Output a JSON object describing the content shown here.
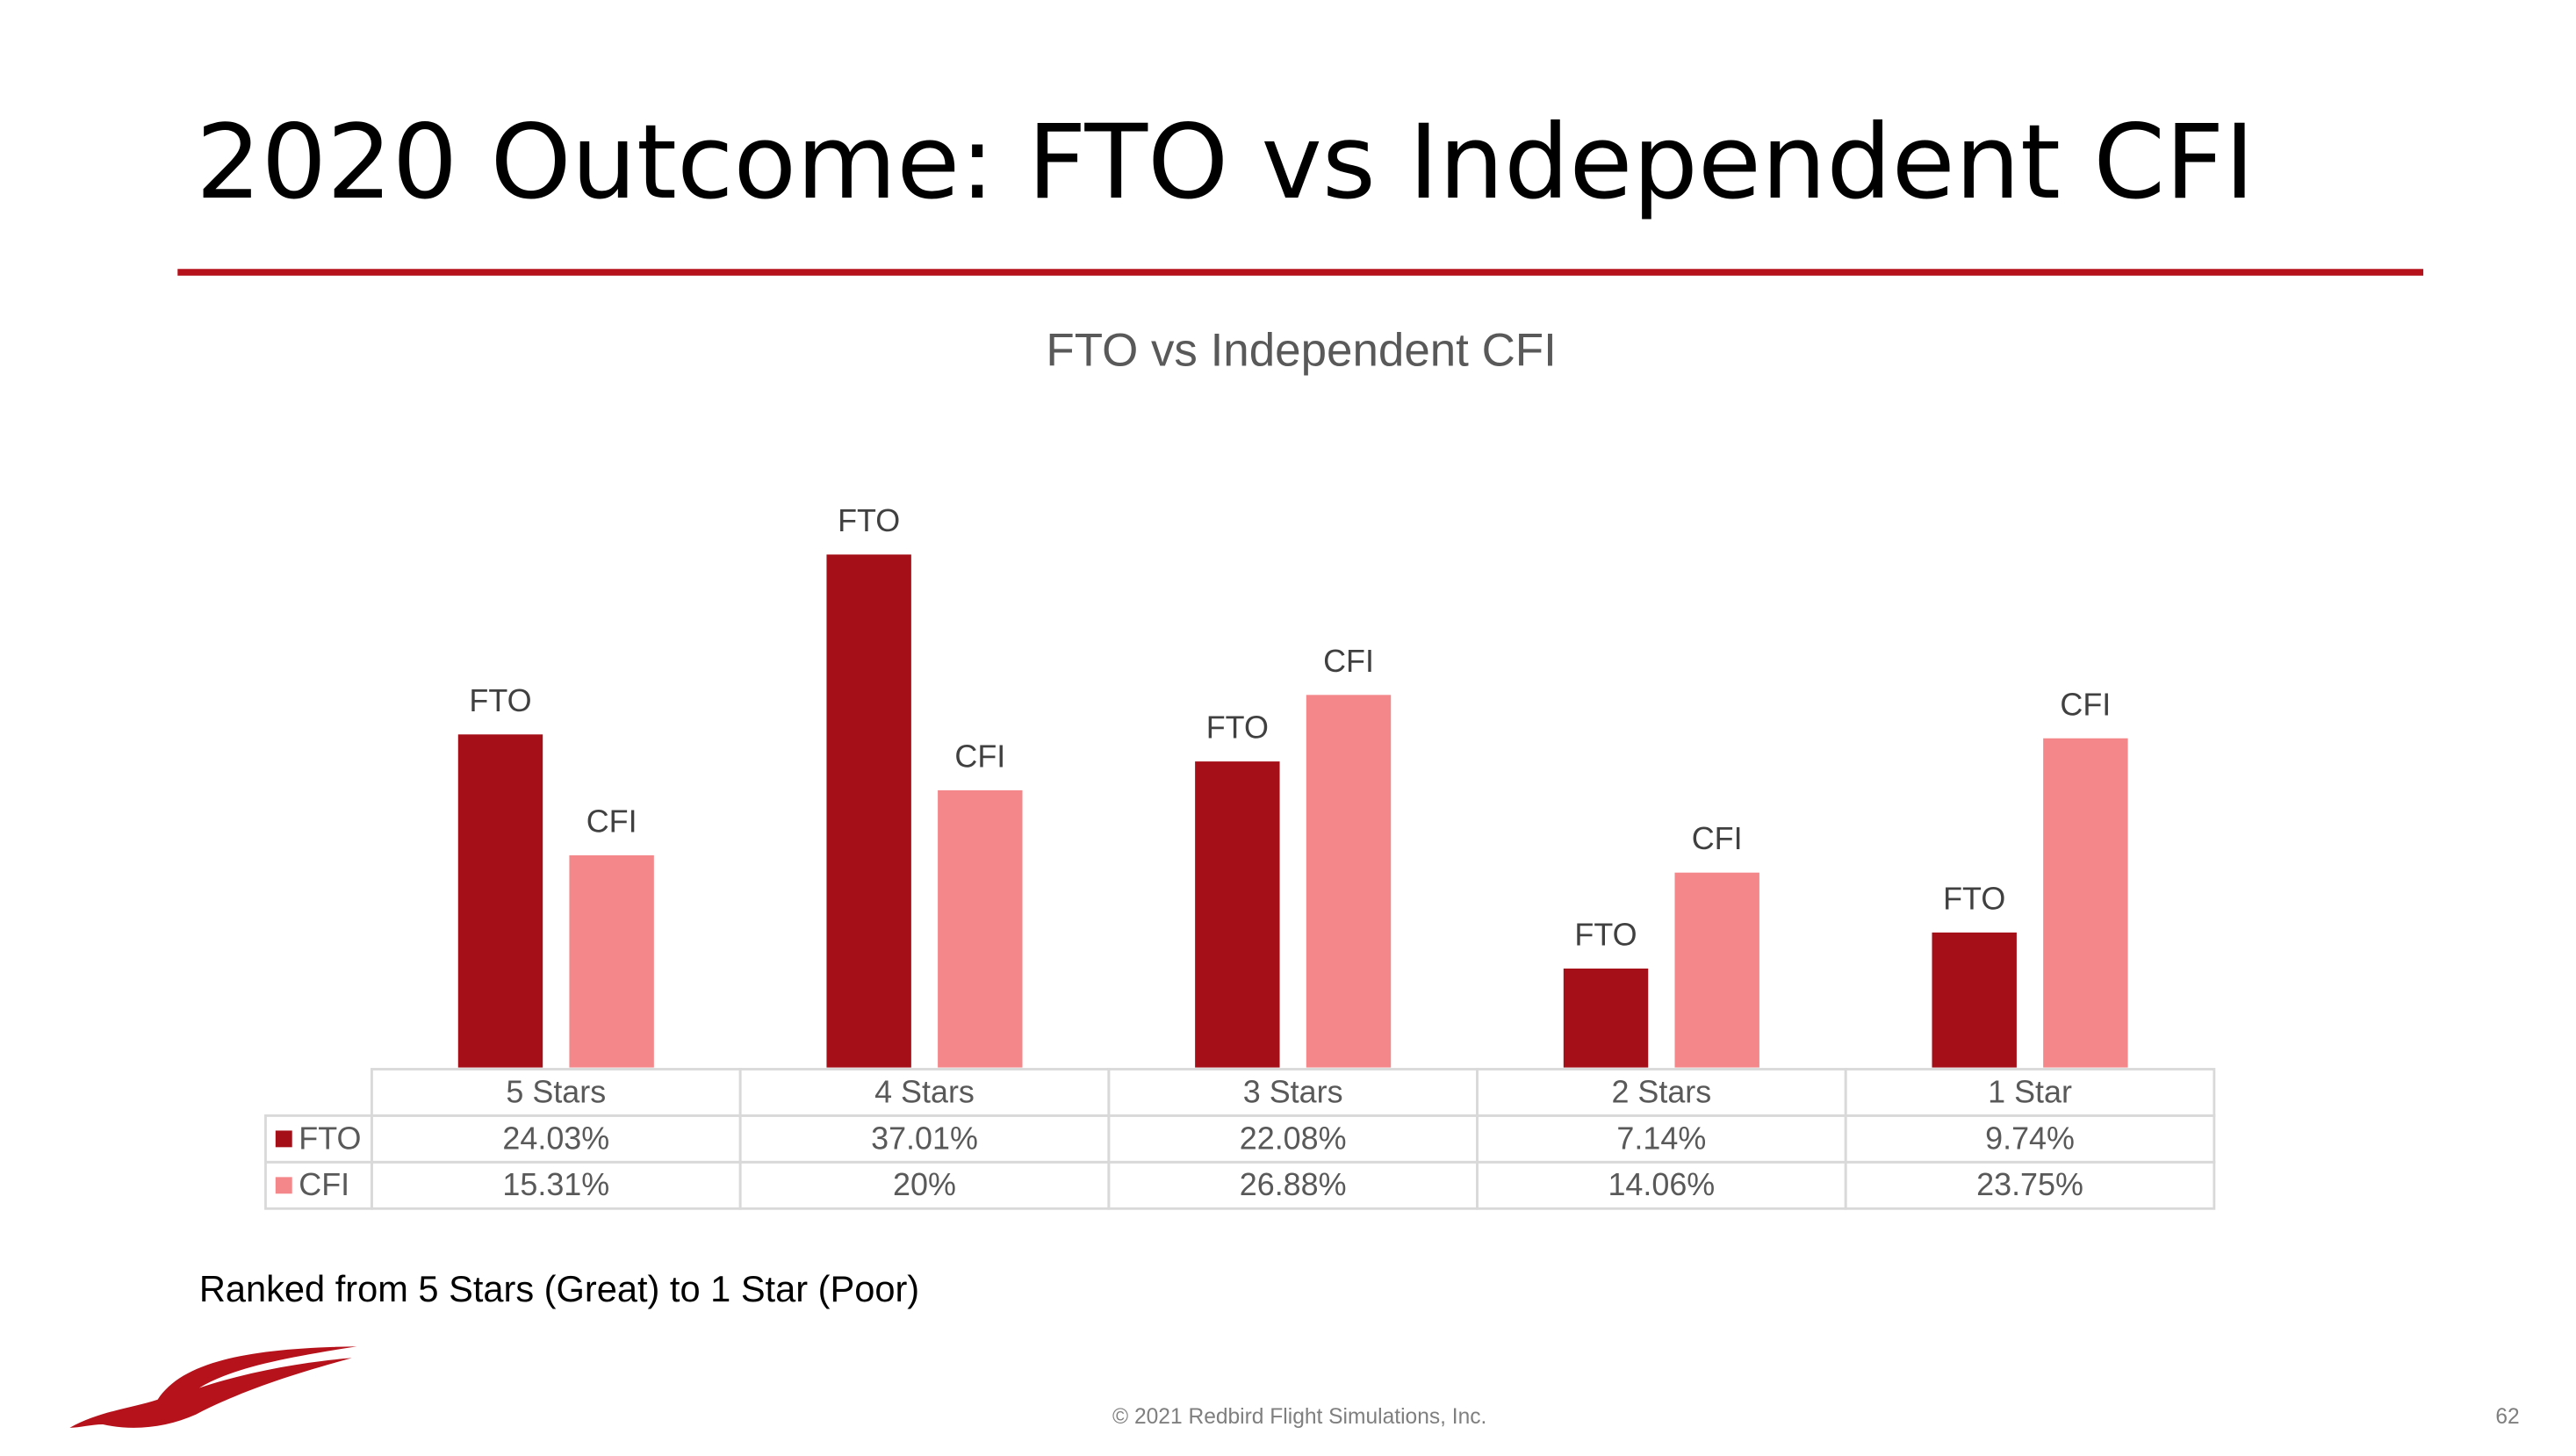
{
  "slide_title": "2020 Outcome: FTO vs Independent CFI",
  "note": "Ranked from 5 Stars (Great) to 1 Star (Poor)",
  "footer": "© 2021 Redbird Flight Simulations, Inc.",
  "page_number": 62,
  "chart_data": {
    "type": "bar",
    "title": "FTO vs Independent CFI",
    "categories": [
      "5 Stars",
      "4 Stars",
      "3 Stars",
      "2 Stars",
      "1 Star"
    ],
    "series": [
      {
        "name": "FTO",
        "color": "#a50f18",
        "values": [
          24.03,
          37.01,
          22.08,
          7.14,
          9.74
        ],
        "value_labels": [
          "24.03%",
          "37.01%",
          "22.08%",
          "7.14%",
          "9.74%"
        ]
      },
      {
        "name": "CFI",
        "color": "#f4878a",
        "values": [
          15.31,
          20,
          26.88,
          14.06,
          23.75
        ],
        "value_labels": [
          "15.31%",
          "20%",
          "26.88%",
          "14.06%",
          "23.75%"
        ]
      }
    ]
  }
}
